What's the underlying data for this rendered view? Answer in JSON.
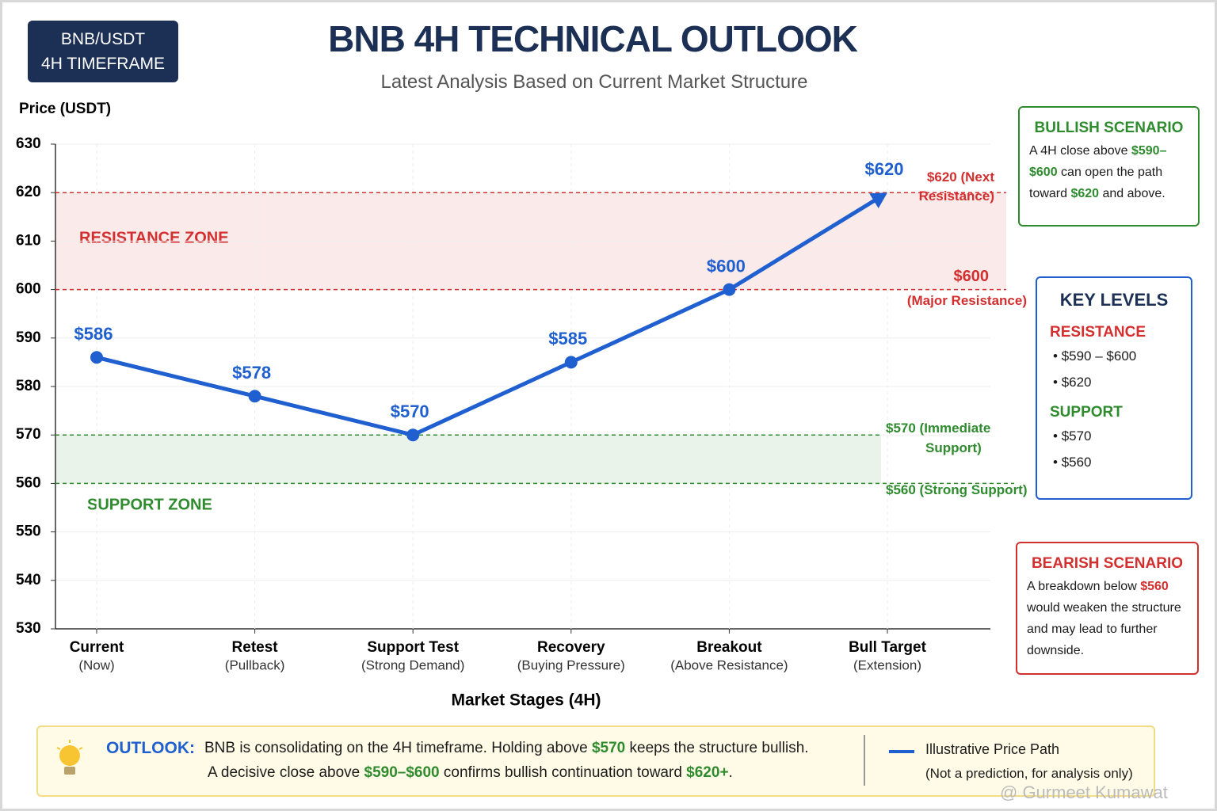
{
  "badge": {
    "line1": "BNB/USDT",
    "line2": "4H TIMEFRAME"
  },
  "chart_data": {
    "type": "line",
    "title": "BNB 4H TECHNICAL OUTLOOK",
    "subtitle": "Latest Analysis Based on Current Market Structure",
    "y_label": "Price (USDT)",
    "x_label": "Market Stages (4H)",
    "categories": [
      "Current",
      "Retest",
      "Support Test",
      "Recovery",
      "Breakout",
      "Bull Target"
    ],
    "category_notes": [
      "(Now)",
      "(Pullback)",
      "(Strong Demand)",
      "(Buying Pressure)",
      "(Above Resistance)",
      "(Extension)"
    ],
    "values": [
      586,
      578,
      570,
      585,
      600,
      620
    ],
    "value_labels": [
      "$586",
      "$578",
      "$570",
      "$585",
      "$600",
      "$620"
    ],
    "color": "#1f5fcf",
    "ylim": [
      530,
      630
    ],
    "yticks": [
      530,
      540,
      550,
      560,
      570,
      580,
      590,
      600,
      610,
      620,
      630
    ],
    "grid": true,
    "bands": [
      {
        "name": "RESISTANCE ZONE",
        "from": 600,
        "to": 620,
        "color": "#d32f2f"
      },
      {
        "name": "SUPPORT ZONE",
        "from": 560,
        "to": 570,
        "color": "#2e8b2e"
      }
    ],
    "reference_lines": [
      {
        "value": 620,
        "label": "$620 (Next Resistance)",
        "color": "#d32f2f"
      },
      {
        "value": 600,
        "label": "$600",
        "note": "(Major Resistance)",
        "color": "#d32f2f"
      },
      {
        "value": 570,
        "label": "$570 (Immediate Support)",
        "color": "#2e8b2e"
      },
      {
        "value": 560,
        "label": "$560 (Strong Support)",
        "color": "#2e8b2e"
      }
    ]
  },
  "bullish": {
    "title": "BULLISH SCENARIO",
    "text": [
      {
        "text": "A 4H close above "
      },
      {
        "text": "$590–$600",
        "em": true
      },
      {
        "text": " can open the path toward "
      },
      {
        "text": "$620",
        "em": true
      },
      {
        "text": " and above."
      }
    ]
  },
  "key_levels": {
    "title": "KEY LEVELS",
    "groups": [
      {
        "name": "RESISTANCE",
        "items": [
          "$590 – $600",
          "$620"
        ]
      },
      {
        "name": "SUPPORT",
        "items": [
          "$570",
          "$560"
        ]
      }
    ]
  },
  "bearish": {
    "title": "BEARISH SCENARIO",
    "text": [
      {
        "text": "A breakdown below "
      },
      {
        "text": "$560",
        "em": true
      },
      {
        "text": " would weaken the structure and may lead to further downside."
      }
    ]
  },
  "outlook": {
    "label": "OUTLOOK:",
    "lines": [
      [
        {
          "text": "BNB is consolidating on the 4H timeframe. Holding above "
        },
        {
          "text": "$570",
          "em": true
        },
        {
          "text": " keeps the structure bullish."
        }
      ],
      [
        {
          "text": "A decisive close above "
        },
        {
          "text": "$590–$600",
          "em": true
        },
        {
          "text": " confirms bullish continuation toward "
        },
        {
          "text": "$620+",
          "em": true
        },
        {
          "text": "."
        }
      ]
    ]
  },
  "legend": {
    "name": "Illustrative Price Path",
    "note": "(Not a prediction, for analysis only)"
  },
  "watermark": "@ Gurmeet Kumawat"
}
